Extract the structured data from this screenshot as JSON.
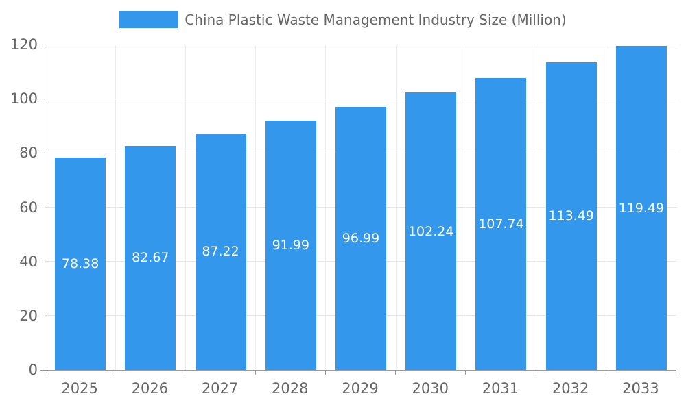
{
  "chart_data": {
    "type": "bar",
    "title": "China Plastic Waste Management Industry Size (Million)",
    "series_name": "China Plastic Waste Management Industry Size (Million)",
    "categories": [
      "2025",
      "2026",
      "2027",
      "2028",
      "2029",
      "2030",
      "2031",
      "2032",
      "2033"
    ],
    "values": [
      78.38,
      82.67,
      87.22,
      91.99,
      96.99,
      102.24,
      107.74,
      113.49,
      119.49
    ],
    "data_labels": [
      "78.38",
      "82.67",
      "87.22",
      "91.99",
      "96.99",
      "102.24",
      "107.74",
      "113.49",
      "119.49"
    ],
    "xlabel": "",
    "ylabel": "",
    "ylim": [
      0,
      120
    ],
    "yticks": [
      0,
      20,
      40,
      60,
      80,
      100,
      120
    ],
    "grid": true,
    "legend_position": "top",
    "colors": {
      "bar": "#3398EC",
      "data_label": "#FFFFFF",
      "axis_text": "#666666",
      "grid_h": "#E6E6E6",
      "grid_v": "#ECECEC",
      "axis_line": "#999999"
    }
  }
}
